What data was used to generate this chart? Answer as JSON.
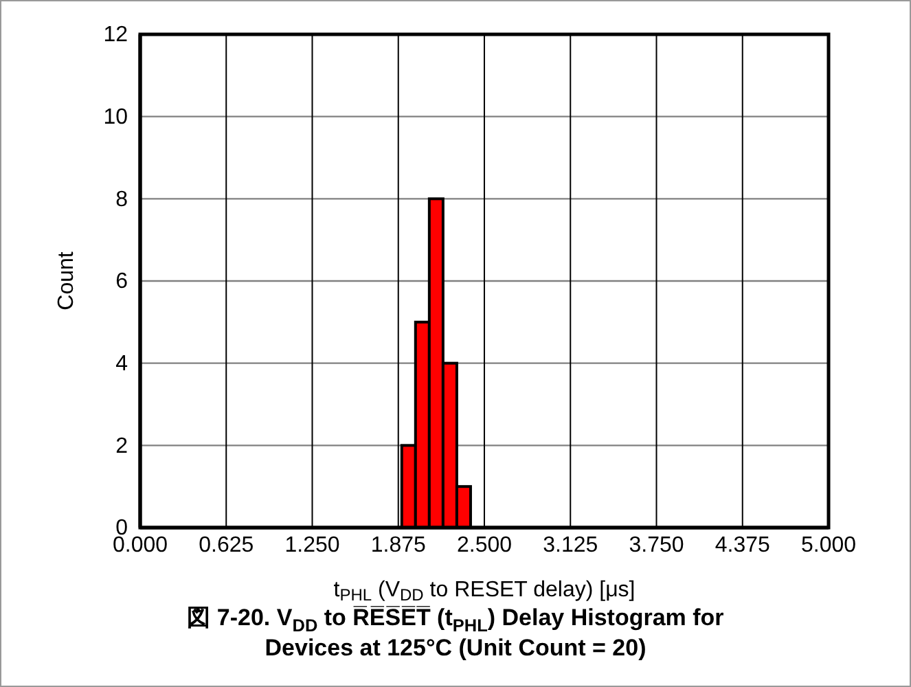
{
  "chart_data": {
    "type": "histogram",
    "title": "図 7-20. V$_{DD}$ to R̅E̅S̅E̅T̅ (t$_{PHL}$) Delay Histogram for Devices at 125°C (Unit Count = 20)",
    "xlabel": "t$_{PHL}$ (V$_{DD}$ to RESET delay) [μs]",
    "ylabel": "Count",
    "bins": [
      1.9,
      2.0,
      2.1,
      2.2,
      2.3,
      2.4
    ],
    "values": [
      2,
      5,
      8,
      4,
      1
    ],
    "color": "#ff0000",
    "xlim": [
      0,
      5
    ],
    "xticks": [
      {
        "value": 0,
        "label": "0.000"
      },
      0.625,
      {
        "value": 1.25,
        "label": "1.250"
      },
      1.875,
      {
        "value": 2.5,
        "label": "2.500"
      },
      3.125,
      {
        "value": 3.75,
        "label": "3.750"
      },
      4.375,
      {
        "value": 5,
        "label": "5.000"
      }
    ],
    "ylim": [
      0,
      12
    ],
    "yticks": [
      0,
      2,
      4,
      6,
      8,
      10,
      12
    ],
    "grid": true
  }
}
